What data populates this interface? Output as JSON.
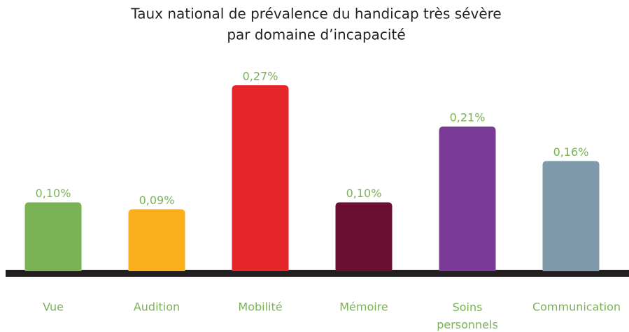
{
  "chart_data": {
    "type": "bar",
    "title": "Taux national de prévalence du handicap très sévère",
    "subtitle": "par domaine d’incapacité",
    "categories": [
      "Vue",
      "Audition",
      "Mobilité",
      "Mémoire",
      "Soins personnels",
      "Communication"
    ],
    "values": [
      0.1,
      0.09,
      0.27,
      0.1,
      0.21,
      0.16
    ],
    "value_labels": [
      "0,10%",
      "0,09%",
      "0,27%",
      "0,10%",
      "0,21%",
      "0,16%"
    ],
    "colors": [
      "#7ab356",
      "#f9ae1c",
      "#e4262b",
      "#6b0f32",
      "#7a3b96",
      "#7f9aaa"
    ]
  }
}
